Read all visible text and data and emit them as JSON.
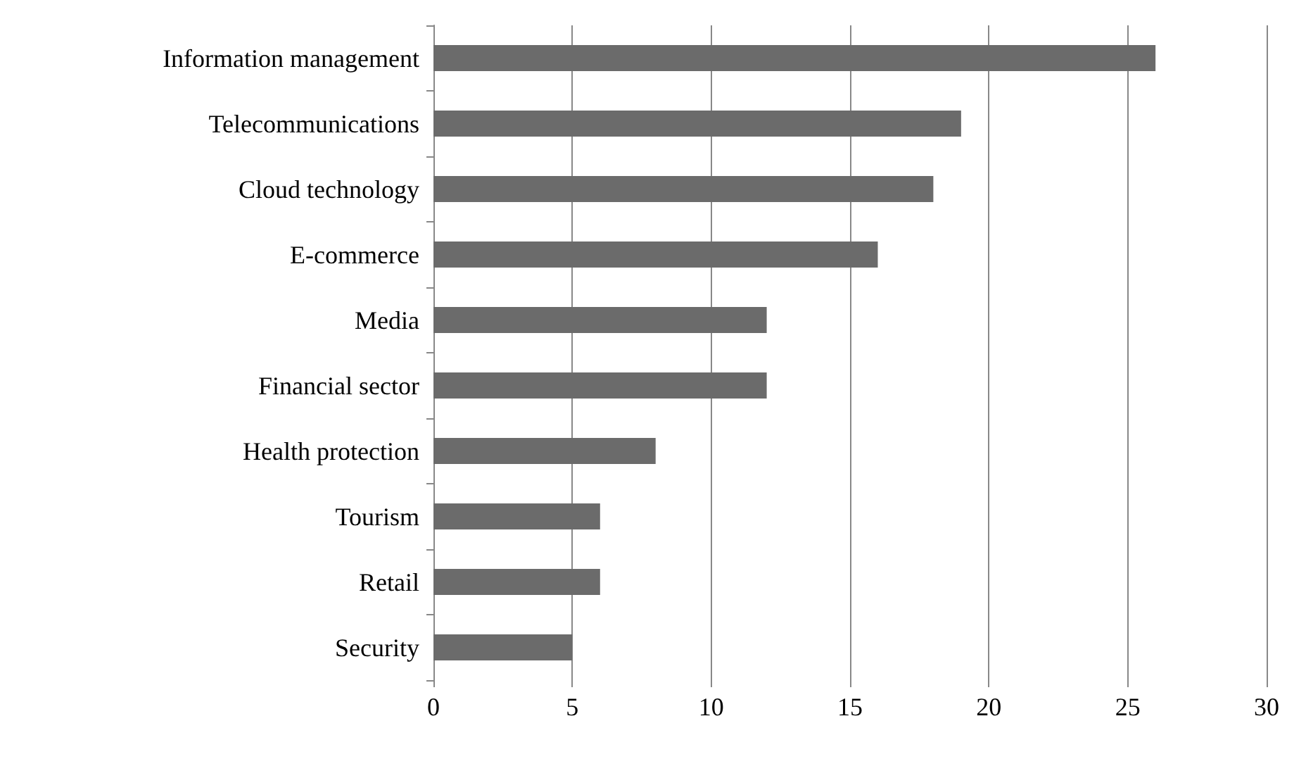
{
  "chart_data": {
    "type": "bar",
    "orientation": "horizontal",
    "categories": [
      "Information management",
      "Telecommunications",
      "Cloud technology",
      "E-commerce",
      "Media",
      "Financial sector",
      "Health protection",
      "Tourism",
      "Retail",
      "Security"
    ],
    "values": [
      26,
      19,
      18,
      16,
      12,
      12,
      8,
      6,
      6,
      5
    ],
    "color": "#6b6b6b",
    "xlim": [
      0,
      30
    ],
    "xticks": [
      0,
      5,
      10,
      15,
      20,
      25,
      30
    ],
    "grid": "x"
  }
}
